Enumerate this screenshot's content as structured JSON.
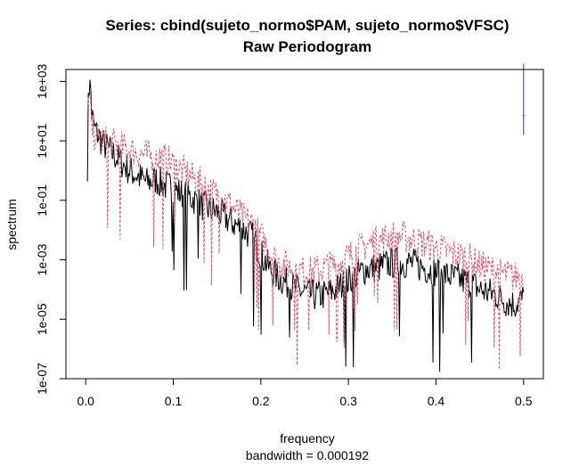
{
  "chart_data": {
    "type": "line",
    "title": "Series: cbind(sujeto_normo$PAM, sujeto_normo$VFSC)",
    "subtitle": "Raw Periodogram",
    "xlabel": "frequency",
    "ylabel": "spectrum",
    "sublabel": "bandwidth = 0.000192",
    "xlim": [
      0,
      0.5
    ],
    "ylim_log10": [
      -7,
      3.4
    ],
    "y_scale": "log",
    "x_ticks": [
      "0.0",
      "0.1",
      "0.2",
      "0.3",
      "0.4",
      "0.5"
    ],
    "x_tick_values": [
      0,
      0.1,
      0.2,
      0.3,
      0.4,
      0.5
    ],
    "y_ticks": [
      "1e-07",
      "1e-05",
      "1e-03",
      "1e-01",
      "1e+01",
      "1e+03"
    ],
    "y_tick_values_log10": [
      -7,
      -5,
      -3,
      -1,
      1,
      3
    ],
    "ci_bar": {
      "x": 0.5,
      "y_log10": [
        1.2,
        3.6
      ],
      "mid_log10": 1.85,
      "color": "#3333cc"
    },
    "series": [
      {
        "style": "solid",
        "color": "#000000",
        "x": [
          0.0,
          0.005,
          0.01,
          0.02,
          0.03,
          0.04,
          0.05,
          0.06,
          0.07,
          0.08,
          0.09,
          0.1,
          0.11,
          0.12,
          0.13,
          0.14,
          0.15,
          0.16,
          0.17,
          0.18,
          0.19,
          0.2,
          0.21,
          0.22,
          0.23,
          0.24,
          0.25,
          0.26,
          0.27,
          0.28,
          0.29,
          0.3,
          0.31,
          0.32,
          0.33,
          0.34,
          0.35,
          0.36,
          0.37,
          0.38,
          0.39,
          0.4,
          0.41,
          0.42,
          0.43,
          0.44,
          0.45,
          0.46,
          0.47,
          0.48,
          0.49,
          0.5
        ],
        "y_log10": [
          2.3,
          2.2,
          1.4,
          0.9,
          0.6,
          0.3,
          0.0,
          -0.2,
          -0.4,
          -0.3,
          -0.5,
          -0.6,
          -0.8,
          -0.9,
          -1.1,
          -1.3,
          -1.4,
          -1.6,
          -1.8,
          -2.0,
          -2.2,
          -2.8,
          -3.3,
          -3.6,
          -3.8,
          -4.0,
          -4.1,
          -4.2,
          -4.2,
          -4.1,
          -3.9,
          -3.7,
          -3.5,
          -3.3,
          -3.3,
          -3.2,
          -3.1,
          -3.1,
          -3.1,
          -3.2,
          -3.3,
          -3.4,
          -3.5,
          -3.6,
          -3.7,
          -3.8,
          -4.0,
          -4.1,
          -4.2,
          -4.4,
          -4.5,
          -4.3
        ]
      },
      {
        "style": "dashed",
        "color": "#df536b",
        "x": [
          0.0,
          0.005,
          0.01,
          0.02,
          0.03,
          0.04,
          0.05,
          0.06,
          0.07,
          0.08,
          0.09,
          0.1,
          0.11,
          0.12,
          0.13,
          0.14,
          0.15,
          0.16,
          0.17,
          0.18,
          0.19,
          0.2,
          0.21,
          0.22,
          0.23,
          0.24,
          0.25,
          0.26,
          0.27,
          0.28,
          0.29,
          0.3,
          0.31,
          0.32,
          0.33,
          0.34,
          0.35,
          0.36,
          0.37,
          0.38,
          0.39,
          0.4,
          0.41,
          0.42,
          0.43,
          0.44,
          0.45,
          0.46,
          0.47,
          0.48,
          0.49,
          0.5
        ],
        "y_log10": [
          1.8,
          1.6,
          1.2,
          1.0,
          0.9,
          0.8,
          0.7,
          0.6,
          0.5,
          0.5,
          0.4,
          0.2,
          0.0,
          -0.2,
          -0.4,
          -0.6,
          -0.8,
          -1.0,
          -1.3,
          -1.6,
          -1.8,
          -2.2,
          -2.7,
          -3.1,
          -3.2,
          -3.3,
          -3.4,
          -3.4,
          -3.3,
          -3.2,
          -3.1,
          -2.9,
          -2.7,
          -2.5,
          -2.4,
          -2.3,
          -2.2,
          -2.2,
          -2.3,
          -2.4,
          -2.5,
          -2.6,
          -2.7,
          -2.8,
          -2.9,
          -3.0,
          -3.2,
          -3.3,
          -3.4,
          -3.5,
          -3.6,
          -3.4
        ]
      }
    ]
  }
}
